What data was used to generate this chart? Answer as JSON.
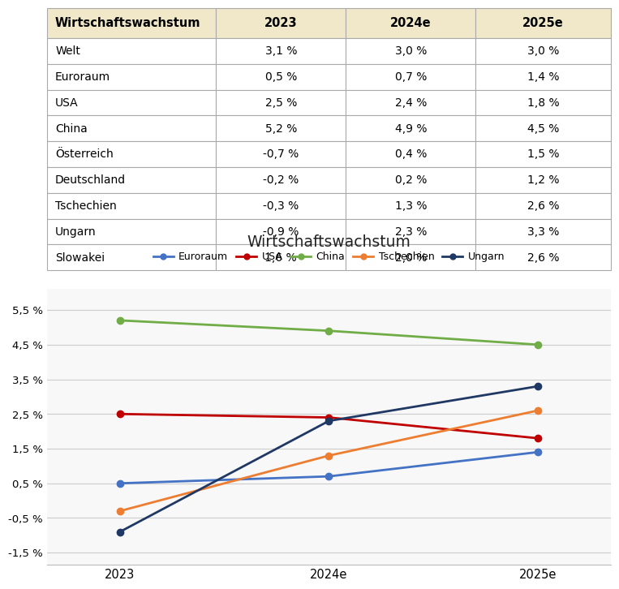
{
  "table_title": "Wirtschaftswachstum",
  "columns": [
    "Wirtschaftswachstum",
    "2023",
    "2024e",
    "2025e"
  ],
  "rows": [
    [
      "Welt",
      "3,1 %",
      "3,0 %",
      "3,0 %"
    ],
    [
      "Euroraum",
      "0,5 %",
      "0,7 %",
      "1,4 %"
    ],
    [
      "USA",
      "2,5 %",
      "2,4 %",
      "1,8 %"
    ],
    [
      "China",
      "5,2 %",
      "4,9 %",
      "4,5 %"
    ],
    [
      "Österreich",
      "-0,7 %",
      "0,4 %",
      "1,5 %"
    ],
    [
      "Deutschland",
      "-0,2 %",
      "0,2 %",
      "1,2 %"
    ],
    [
      "Tschechien",
      "-0,3 %",
      "1,3 %",
      "2,6 %"
    ],
    [
      "Ungarn",
      "-0,9 %",
      "2,3 %",
      "3,3 %"
    ],
    [
      "Slowakei",
      "1,6 %",
      "2,0 %",
      "2,6 %"
    ]
  ],
  "header_bg": "#f0e8c8",
  "border_color": "#aaaaaa",
  "chart_title": "Wirtschaftswachstum",
  "chart_bg": "#f8f8f8",
  "x_labels": [
    "2023",
    "2024e",
    "2025e"
  ],
  "series": [
    {
      "label": "Euroraum",
      "color": "#4472C4",
      "values": [
        0.5,
        0.7,
        1.4
      ]
    },
    {
      "label": "USA",
      "color": "#C00000",
      "values": [
        2.5,
        2.4,
        1.8
      ]
    },
    {
      "label": "China",
      "color": "#70AD47",
      "values": [
        5.2,
        4.9,
        4.5
      ]
    },
    {
      "label": "Tschechien",
      "color": "#ED7D31",
      "values": [
        -0.3,
        1.3,
        2.6
      ]
    },
    {
      "label": "Ungarn",
      "color": "#1F3864",
      "values": [
        -0.9,
        2.3,
        3.3
      ]
    }
  ],
  "y_ticks": [
    -1.5,
    -0.5,
    0.5,
    1.5,
    2.5,
    3.5,
    4.5,
    5.5
  ],
  "y_tick_labels": [
    "-1,5 %",
    "-0,5 %",
    "0,5 %",
    "1,5 %",
    "2,5 %",
    "3,5 %",
    "4,5 %",
    "5,5 %"
  ],
  "ylim": [
    -1.85,
    6.1
  ],
  "grid_color": "#cccccc",
  "marker": "o",
  "marker_size": 6,
  "line_width": 2.0
}
